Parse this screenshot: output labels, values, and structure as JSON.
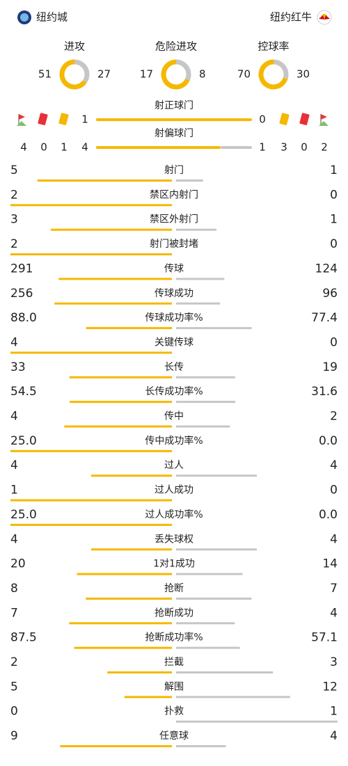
{
  "header": {
    "home": "纽约城",
    "away": "纽约红牛"
  },
  "donuts": [
    {
      "label": "进攻",
      "home": 51,
      "away": 27
    },
    {
      "label": "危险进攻",
      "home": 17,
      "away": 8
    },
    {
      "label": "控球率",
      "home": 70,
      "away": 30
    }
  ],
  "discipline": {
    "home": {
      "corners": 4,
      "red": 0,
      "yellow": 1
    },
    "away": {
      "yellow": 3,
      "red": 0,
      "corners": 2
    }
  },
  "shots_on": {
    "label": "射正球门",
    "home": 1,
    "away": 0
  },
  "shots_off": {
    "label": "射偏球门",
    "home": 4,
    "away": 1
  },
  "stats": [
    {
      "label": "射门",
      "home": 5,
      "away": 1
    },
    {
      "label": "禁区内射门",
      "home": 2,
      "away": 0
    },
    {
      "label": "禁区外射门",
      "home": 3,
      "away": 1
    },
    {
      "label": "射门被封堵",
      "home": 2,
      "away": 0
    },
    {
      "label": "传球",
      "home": 291,
      "away": 124
    },
    {
      "label": "传球成功",
      "home": 256,
      "away": 96
    },
    {
      "label": "传球成功率%",
      "home": 88,
      "home_label": "88.0",
      "away": 77.4
    },
    {
      "label": "关键传球",
      "home": 4,
      "away": 0
    },
    {
      "label": "长传",
      "home": 33,
      "away": 19
    },
    {
      "label": "长传成功率%",
      "home": 54.5,
      "away": 31.6
    },
    {
      "label": "传中",
      "home": 4,
      "away": 2
    },
    {
      "label": "传中成功率%",
      "home": 25,
      "home_label": "25.0",
      "away": 0,
      "away_label": "0.0"
    },
    {
      "label": "过人",
      "home": 4,
      "away": 4
    },
    {
      "label": "过人成功",
      "home": 1,
      "away": 0
    },
    {
      "label": "过人成功率%",
      "home": 25,
      "home_label": "25.0",
      "away": 0,
      "away_label": "0.0"
    },
    {
      "label": "丢失球权",
      "home": 4,
      "away": 4
    },
    {
      "label": "1对1成功",
      "home": 20,
      "away": 14
    },
    {
      "label": "抢断",
      "home": 8,
      "away": 7
    },
    {
      "label": "抢断成功",
      "home": 7,
      "away": 4
    },
    {
      "label": "抢断成功率%",
      "home": 87.5,
      "away": 57.1
    },
    {
      "label": "拦截",
      "home": 2,
      "away": 3
    },
    {
      "label": "解围",
      "home": 5,
      "away": 12
    },
    {
      "label": "扑救",
      "home": 0,
      "away": 1
    },
    {
      "label": "任意球",
      "home": 9,
      "away": 4
    }
  ]
}
